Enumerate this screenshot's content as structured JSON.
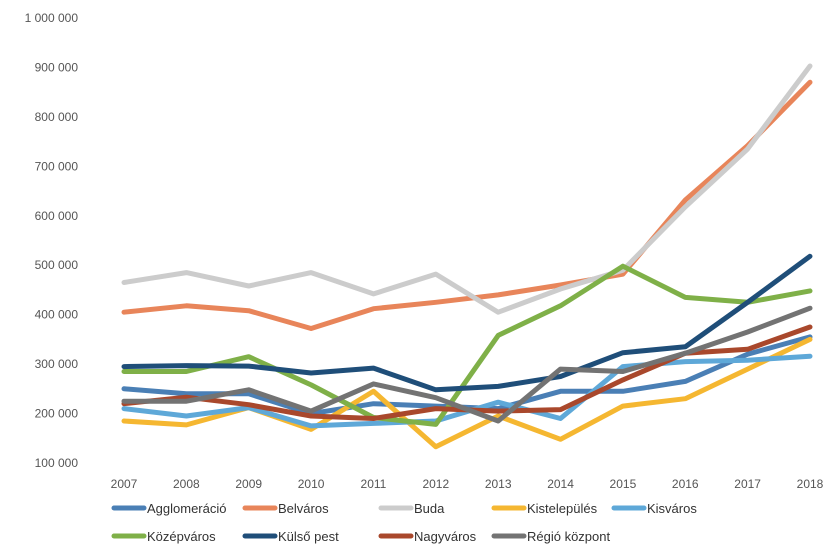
{
  "chart_data": {
    "type": "line",
    "title": "",
    "xlabel": "",
    "ylabel": "",
    "x": [
      "2007",
      "2008",
      "2009",
      "2010",
      "2011",
      "2012",
      "2013",
      "2014",
      "2015",
      "2016",
      "2017",
      "2018"
    ],
    "ylim": [
      100000,
      1000000
    ],
    "yticks": [
      100000,
      200000,
      300000,
      400000,
      500000,
      600000,
      700000,
      800000,
      900000,
      1000000
    ],
    "ytick_labels": [
      "100 000",
      "200 000",
      "300 000",
      "400 000",
      "500 000",
      "600 000",
      "700 000",
      "800 000",
      "900 000",
      "1 000 000"
    ],
    "grid": false,
    "legend_position": "bottom",
    "series": [
      {
        "name": "Agglomeráció",
        "color": "#4a7fb5",
        "values": [
          250000,
          240000,
          240000,
          200000,
          220000,
          215000,
          210000,
          245000,
          245000,
          265000,
          320000,
          355000
        ]
      },
      {
        "name": "Belváros",
        "color": "#e8855a",
        "values": [
          405000,
          418000,
          408000,
          372000,
          412000,
          425000,
          440000,
          460000,
          482000,
          632000,
          742000,
          870000
        ]
      },
      {
        "name": "Buda",
        "color": "#cccccc",
        "values": [
          465000,
          485000,
          458000,
          485000,
          442000,
          482000,
          405000,
          452000,
          490000,
          618000,
          735000,
          903000
        ]
      },
      {
        "name": "Kistelepülés",
        "color": "#f5b731",
        "values": [
          185000,
          177000,
          212000,
          168000,
          245000,
          133000,
          195000,
          148000,
          215000,
          230000,
          290000,
          350000
        ]
      },
      {
        "name": "Kisváros",
        "color": "#5ea8d8",
        "values": [
          210000,
          195000,
          212000,
          175000,
          180000,
          185000,
          223000,
          190000,
          295000,
          305000,
          308000,
          316000
        ]
      },
      {
        "name": "Középváros",
        "color": "#7fb048",
        "values": [
          285000,
          285000,
          315000,
          258000,
          192000,
          178000,
          358000,
          418000,
          498000,
          435000,
          425000,
          448000
        ]
      },
      {
        "name": "Külső pest",
        "color": "#1f4e79",
        "values": [
          295000,
          297000,
          296000,
          282000,
          292000,
          248000,
          255000,
          275000,
          323000,
          335000,
          425000,
          518000
        ]
      },
      {
        "name": "Nagyváros",
        "color": "#a9482c",
        "values": [
          220000,
          233000,
          218000,
          195000,
          190000,
          210000,
          205000,
          208000,
          268000,
          322000,
          330000,
          375000
        ]
      },
      {
        "name": "Régió központ",
        "color": "#737373",
        "values": [
          225000,
          225000,
          248000,
          205000,
          260000,
          232000,
          185000,
          290000,
          285000,
          322000,
          365000,
          413000
        ]
      }
    ]
  }
}
